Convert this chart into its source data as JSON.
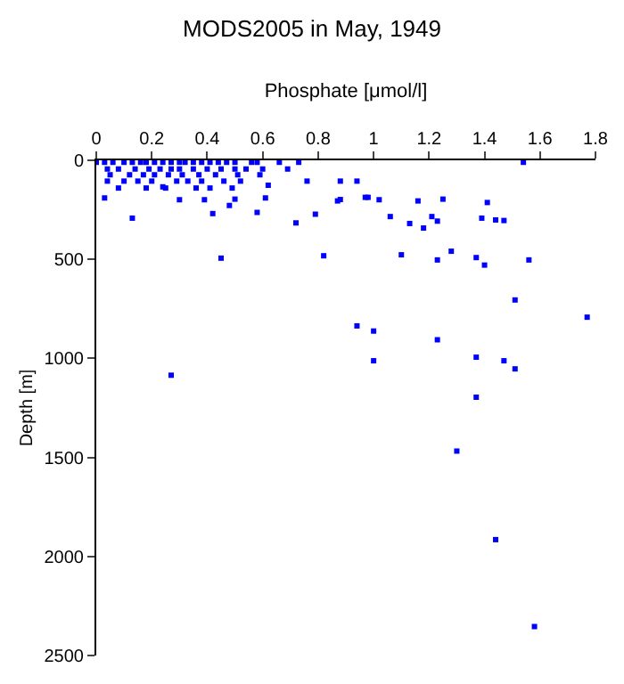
{
  "chart_data": {
    "type": "scatter",
    "title": "MODS2005 in May, 1949",
    "xlabel": "Phosphate [μmol/l]",
    "ylabel": "Depth [m]",
    "xlim": [
      0,
      1.8
    ],
    "xticks": [
      0,
      0.2,
      0.4,
      0.6,
      0.8,
      1,
      1.2,
      1.4,
      1.6,
      1.8
    ],
    "ylim": [
      2500,
      0
    ],
    "yticks": [
      0,
      500,
      1000,
      1500,
      2000,
      2500
    ],
    "marker": "square",
    "series": [
      {
        "color": "#0000ff",
        "x": [
          0.0,
          0.03,
          0.06,
          0.1,
          0.13,
          0.16,
          0.18,
          0.21,
          0.24,
          0.27,
          0.3,
          0.32,
          0.35,
          0.38,
          0.41,
          0.44,
          0.47,
          0.5,
          0.56,
          0.58,
          0.66,
          0.73,
          1.54,
          0.04,
          0.08,
          0.14,
          0.19,
          0.23,
          0.27,
          0.3,
          0.35,
          0.4,
          0.45,
          0.5,
          0.54,
          0.6,
          0.69,
          0.05,
          0.12,
          0.17,
          0.21,
          0.26,
          0.31,
          0.37,
          0.43,
          0.51,
          0.59,
          0.04,
          0.1,
          0.15,
          0.2,
          0.29,
          0.33,
          0.38,
          0.46,
          0.52,
          0.76,
          0.88,
          0.94,
          0.08,
          0.18,
          0.24,
          0.25,
          0.36,
          0.41,
          0.49,
          0.62,
          0.03,
          0.3,
          0.39,
          0.5,
          0.61,
          0.88,
          0.98,
          1.02,
          1.16,
          1.25,
          1.41,
          0.13,
          0.27,
          0.42,
          0.45,
          0.48,
          0.58,
          0.72,
          0.79,
          0.82,
          0.87,
          0.94,
          0.97,
          1.0,
          1.0,
          1.06,
          1.1,
          1.13,
          1.18,
          1.21,
          1.23,
          1.23,
          1.23,
          1.28,
          1.37,
          1.37,
          1.37,
          1.39,
          1.4,
          1.44,
          1.47,
          1.47,
          1.51,
          1.51,
          1.56,
          1.77,
          1.3,
          1.44,
          1.58
        ],
        "values": [
          10,
          10,
          10,
          10,
          10,
          10,
          10,
          10,
          10,
          10,
          10,
          10,
          10,
          10,
          10,
          10,
          10,
          10,
          10,
          10,
          10,
          10,
          10,
          44,
          44,
          44,
          44,
          44,
          44,
          44,
          44,
          44,
          44,
          44,
          44,
          44,
          44,
          73,
          73,
          73,
          73,
          73,
          73,
          73,
          73,
          73,
          73,
          105,
          105,
          105,
          105,
          105,
          105,
          105,
          105,
          105,
          105,
          105,
          105,
          140,
          140,
          134,
          140,
          140,
          140,
          140,
          126,
          190,
          199,
          199,
          196,
          190,
          198,
          187,
          199,
          205,
          196,
          213,
          292,
          1085,
          269,
          494,
          228,
          263,
          316,
          272,
          482,
          205,
          836,
          187,
          862,
          1012,
          284,
          477,
          319,
          342,
          284,
          307,
          503,
          906,
          459,
          491,
          994,
          1196,
          292,
          529,
          301,
          304,
          1012,
          705,
          1053,
          503,
          792,
          1468,
          1915,
          2354
        ]
      }
    ]
  }
}
